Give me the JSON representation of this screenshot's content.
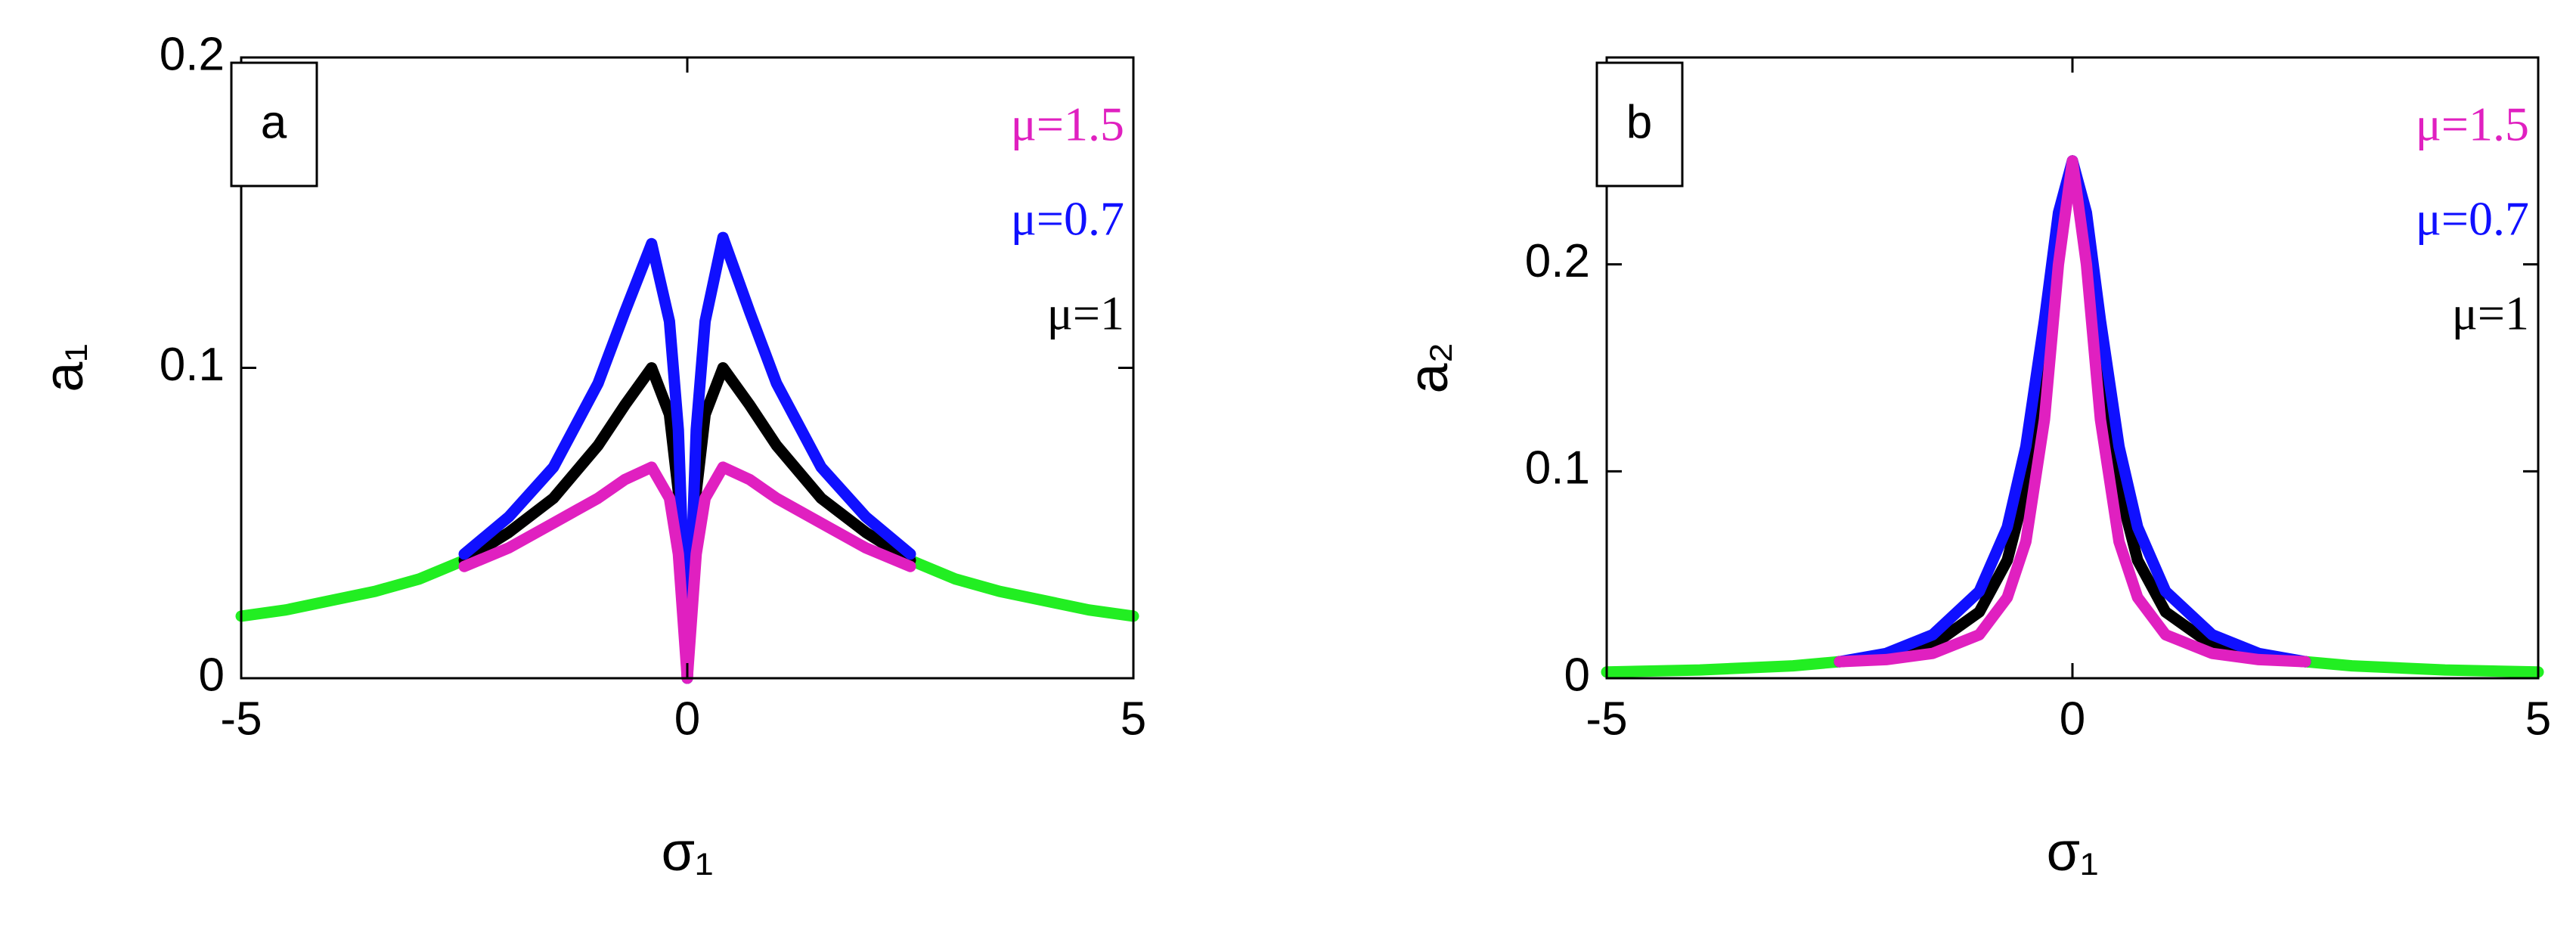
{
  "chart_data": [
    {
      "type": "line",
      "label": "a",
      "xlabel": "σ₁",
      "ylabel": "a₁",
      "x": [
        -5,
        -4.5,
        -4,
        -3.5,
        -3,
        -2.5,
        -2,
        -1.5,
        -1,
        -0.7,
        -0.4,
        -0.2,
        -0.1,
        0,
        0.1,
        0.2,
        0.4,
        0.7,
        1,
        1.5,
        2,
        2.5,
        3,
        3.5,
        4,
        4.5,
        5
      ],
      "series": [
        {
          "name": "μ=1.5",
          "color": "#e020c0",
          "values": [
            null,
            null,
            null,
            null,
            null,
            0.036,
            0.042,
            0.05,
            0.058,
            0.064,
            0.068,
            0.058,
            0.04,
            0,
            0.04,
            0.058,
            0.068,
            0.064,
            0.058,
            0.05,
            0.042,
            0.036,
            null,
            null,
            null,
            null,
            null
          ]
        },
        {
          "name": "μ=0.7",
          "color": "#1010ff",
          "values": [
            null,
            null,
            null,
            null,
            null,
            0.04,
            0.052,
            0.068,
            0.095,
            0.118,
            0.14,
            0.115,
            0.08,
            0,
            0.08,
            0.115,
            0.142,
            0.118,
            0.095,
            0.068,
            0.052,
            0.04,
            null,
            null,
            null,
            null,
            null
          ]
        },
        {
          "name": "μ=1",
          "color": "#000000",
          "values": [
            null,
            null,
            null,
            null,
            null,
            0.038,
            0.047,
            0.058,
            0.075,
            0.088,
            0.1,
            0.085,
            0.06,
            0,
            0.06,
            0.085,
            0.1,
            0.088,
            0.075,
            0.058,
            0.047,
            0.038,
            null,
            null,
            null,
            null,
            null
          ]
        },
        {
          "color": "#22ee22",
          "values": [
            0.02,
            0.022,
            0.025,
            0.028,
            0.032,
            0.038,
            null,
            null,
            null,
            null,
            null,
            null,
            null,
            null,
            null,
            null,
            null,
            null,
            null,
            null,
            null,
            0.038,
            0.032,
            0.028,
            0.025,
            0.022,
            0.02
          ]
        }
      ],
      "xlim": [
        -5,
        5
      ],
      "xticks": [
        -5,
        0,
        5
      ],
      "ylim": [
        0,
        0.2
      ],
      "yticks": [
        0,
        0.1,
        0.2
      ],
      "grid": false
    },
    {
      "type": "line",
      "label": "b",
      "xlabel": "σ₁",
      "ylabel": "a₂",
      "x": [
        -5,
        -4,
        -3,
        -2.5,
        -2,
        -1.5,
        -1,
        -0.7,
        -0.5,
        -0.3,
        -0.15,
        0,
        0.15,
        0.3,
        0.5,
        0.7,
        1,
        1.5,
        2,
        2.5,
        3,
        4,
        5
      ],
      "series": [
        {
          "name": "μ=1.5",
          "color": "#e020c0",
          "values": [
            null,
            null,
            null,
            0.008,
            0.009,
            0.012,
            0.021,
            0.039,
            0.066,
            0.125,
            0.2,
            0.25,
            0.2,
            0.125,
            0.066,
            0.039,
            0.021,
            0.012,
            0.009,
            0.008,
            null,
            null,
            null
          ]
        },
        {
          "name": "μ=0.7",
          "color": "#1010ff",
          "values": [
            null,
            null,
            null,
            0.008,
            0.012,
            0.021,
            0.042,
            0.073,
            0.112,
            0.173,
            0.225,
            0.25,
            0.225,
            0.173,
            0.112,
            0.073,
            0.042,
            0.021,
            0.012,
            0.008,
            null,
            null,
            null
          ]
        },
        {
          "name": "μ=1",
          "color": "#000000",
          "values": [
            null,
            null,
            null,
            0.008,
            0.01,
            0.016,
            0.032,
            0.057,
            0.092,
            0.154,
            0.216,
            0.25,
            0.216,
            0.154,
            0.092,
            0.057,
            0.032,
            0.016,
            0.01,
            0.008,
            null,
            null,
            null
          ]
        },
        {
          "color": "#22ee22",
          "values": [
            0.003,
            0.004,
            0.006,
            0.008,
            null,
            null,
            null,
            null,
            null,
            null,
            null,
            null,
            null,
            null,
            null,
            null,
            null,
            null,
            null,
            0.008,
            0.006,
            0.004,
            0.003
          ]
        }
      ],
      "xlim": [
        -5,
        5
      ],
      "xticks": [
        -5,
        0,
        5
      ],
      "ylim": [
        0,
        0.3
      ],
      "yticks": [
        0,
        0.1,
        0.2
      ],
      "grid": false
    }
  ]
}
